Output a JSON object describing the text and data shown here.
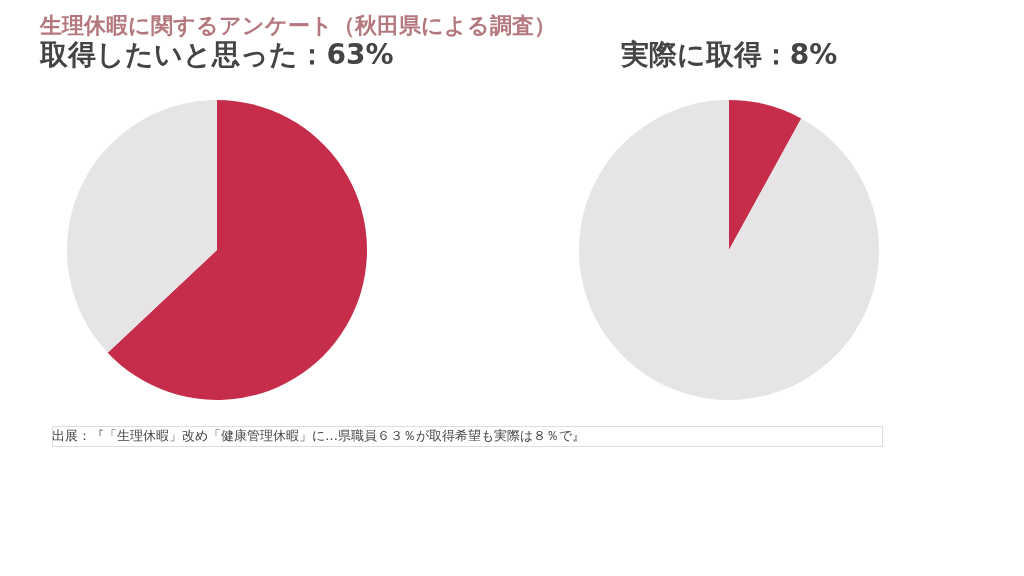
{
  "chart_data": [
    {
      "type": "pie",
      "title": "生理休暇に関するアンケート（秋田県による調査）",
      "subtitle": "取得したいと思った：63%",
      "categories": [
        null,
        null
      ],
      "values": [
        63,
        37
      ],
      "colors": [
        "#c52d4a",
        "#e6e4e6"
      ],
      "annotations": [
        "出展：『「生理休暇」改め「健康管理休暇」に…県職員６３％が取得希望も実際は８％で』"
      ]
    },
    {
      "type": "pie",
      "subtitle": "実際に取得：8%",
      "categories": [
        null,
        null
      ],
      "values": [
        8,
        92
      ],
      "colors": [
        "#c52d4a",
        "#e6e4e6"
      ]
    }
  ]
}
